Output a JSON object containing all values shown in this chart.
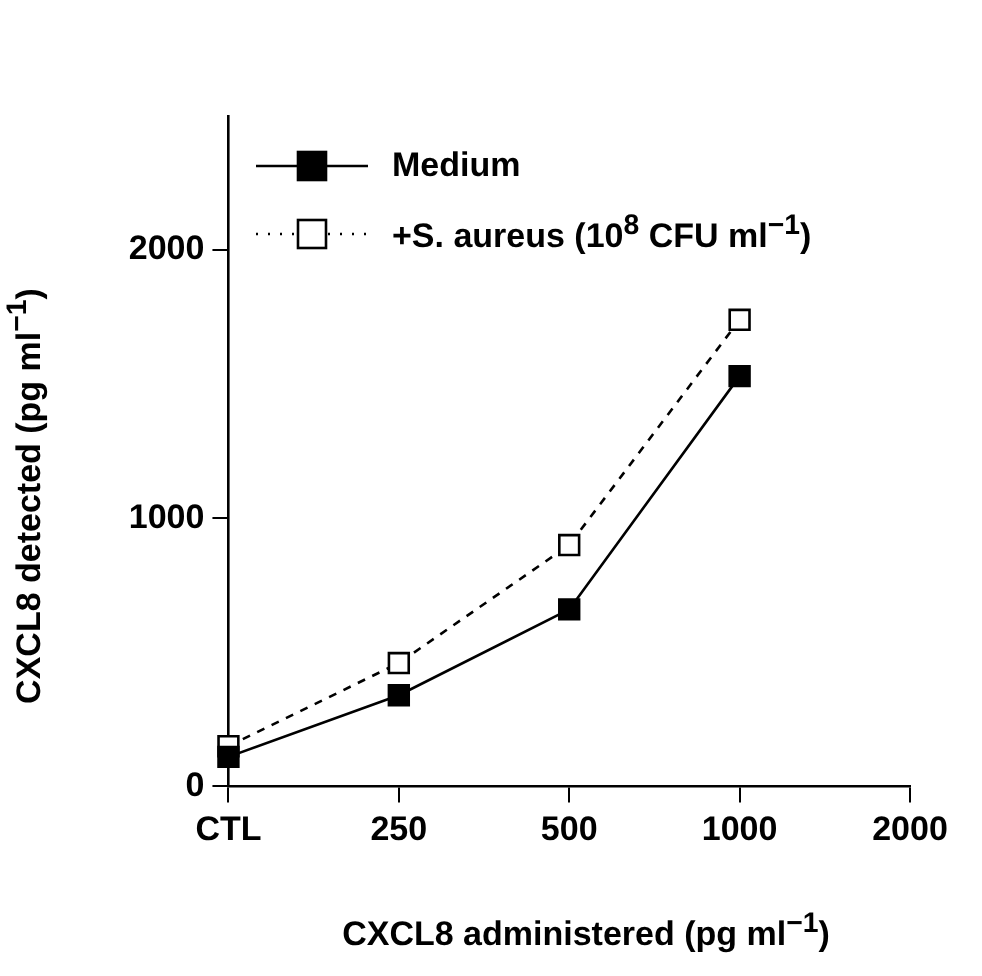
{
  "chart_data": {
    "type": "line",
    "categories": [
      "CTL",
      "250",
      "500",
      "1000",
      "2000"
    ],
    "xlabel": "CXCL8 administered (pg ml$^{−1}$)",
    "ylabel": "CXCL8 detected (pg ml$^{−1}$)",
    "ylim": [
      0,
      2500
    ],
    "yticks": [
      0,
      1000,
      2000
    ],
    "grid": false,
    "legend": "top left",
    "marker": "square",
    "series": [
      {
        "name": "Medium",
        "color": "#000000",
        "line_style": "solid",
        "values": [
          110,
          340,
          660,
          1530,
          null
        ]
      },
      {
        "name": "+S. aureus (10$^{8}$ CFU ml$^{−1}$)",
        "color": "#000000",
        "line_style": "dashed",
        "values": [
          150,
          460,
          900,
          1740,
          null
        ]
      }
    ]
  }
}
